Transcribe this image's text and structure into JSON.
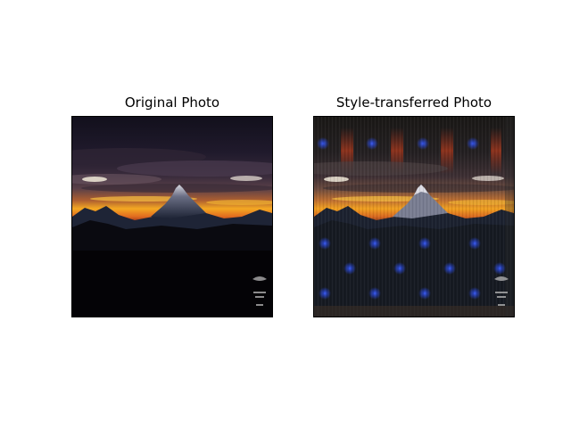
{
  "panels": [
    {
      "title": "Original Photo",
      "image_subject": "mountain peak silhouetted against a sunset with dark clouds"
    },
    {
      "title": "Style-transferred Photo",
      "image_subject": "same mountain sunset photo with blue and red texture artifacts from style transfer"
    }
  ],
  "colors": {
    "sky_dark": "#141020",
    "cloud_purple": "#4a3a4e",
    "sunset_orange": "#f0a020",
    "sunset_red": "#c03818",
    "mountain": "#1e2436",
    "ground": "#050406",
    "artifact_blue": "#2a4ae0",
    "artifact_red": "#a83018"
  },
  "watermark_text": "Bild Asien"
}
